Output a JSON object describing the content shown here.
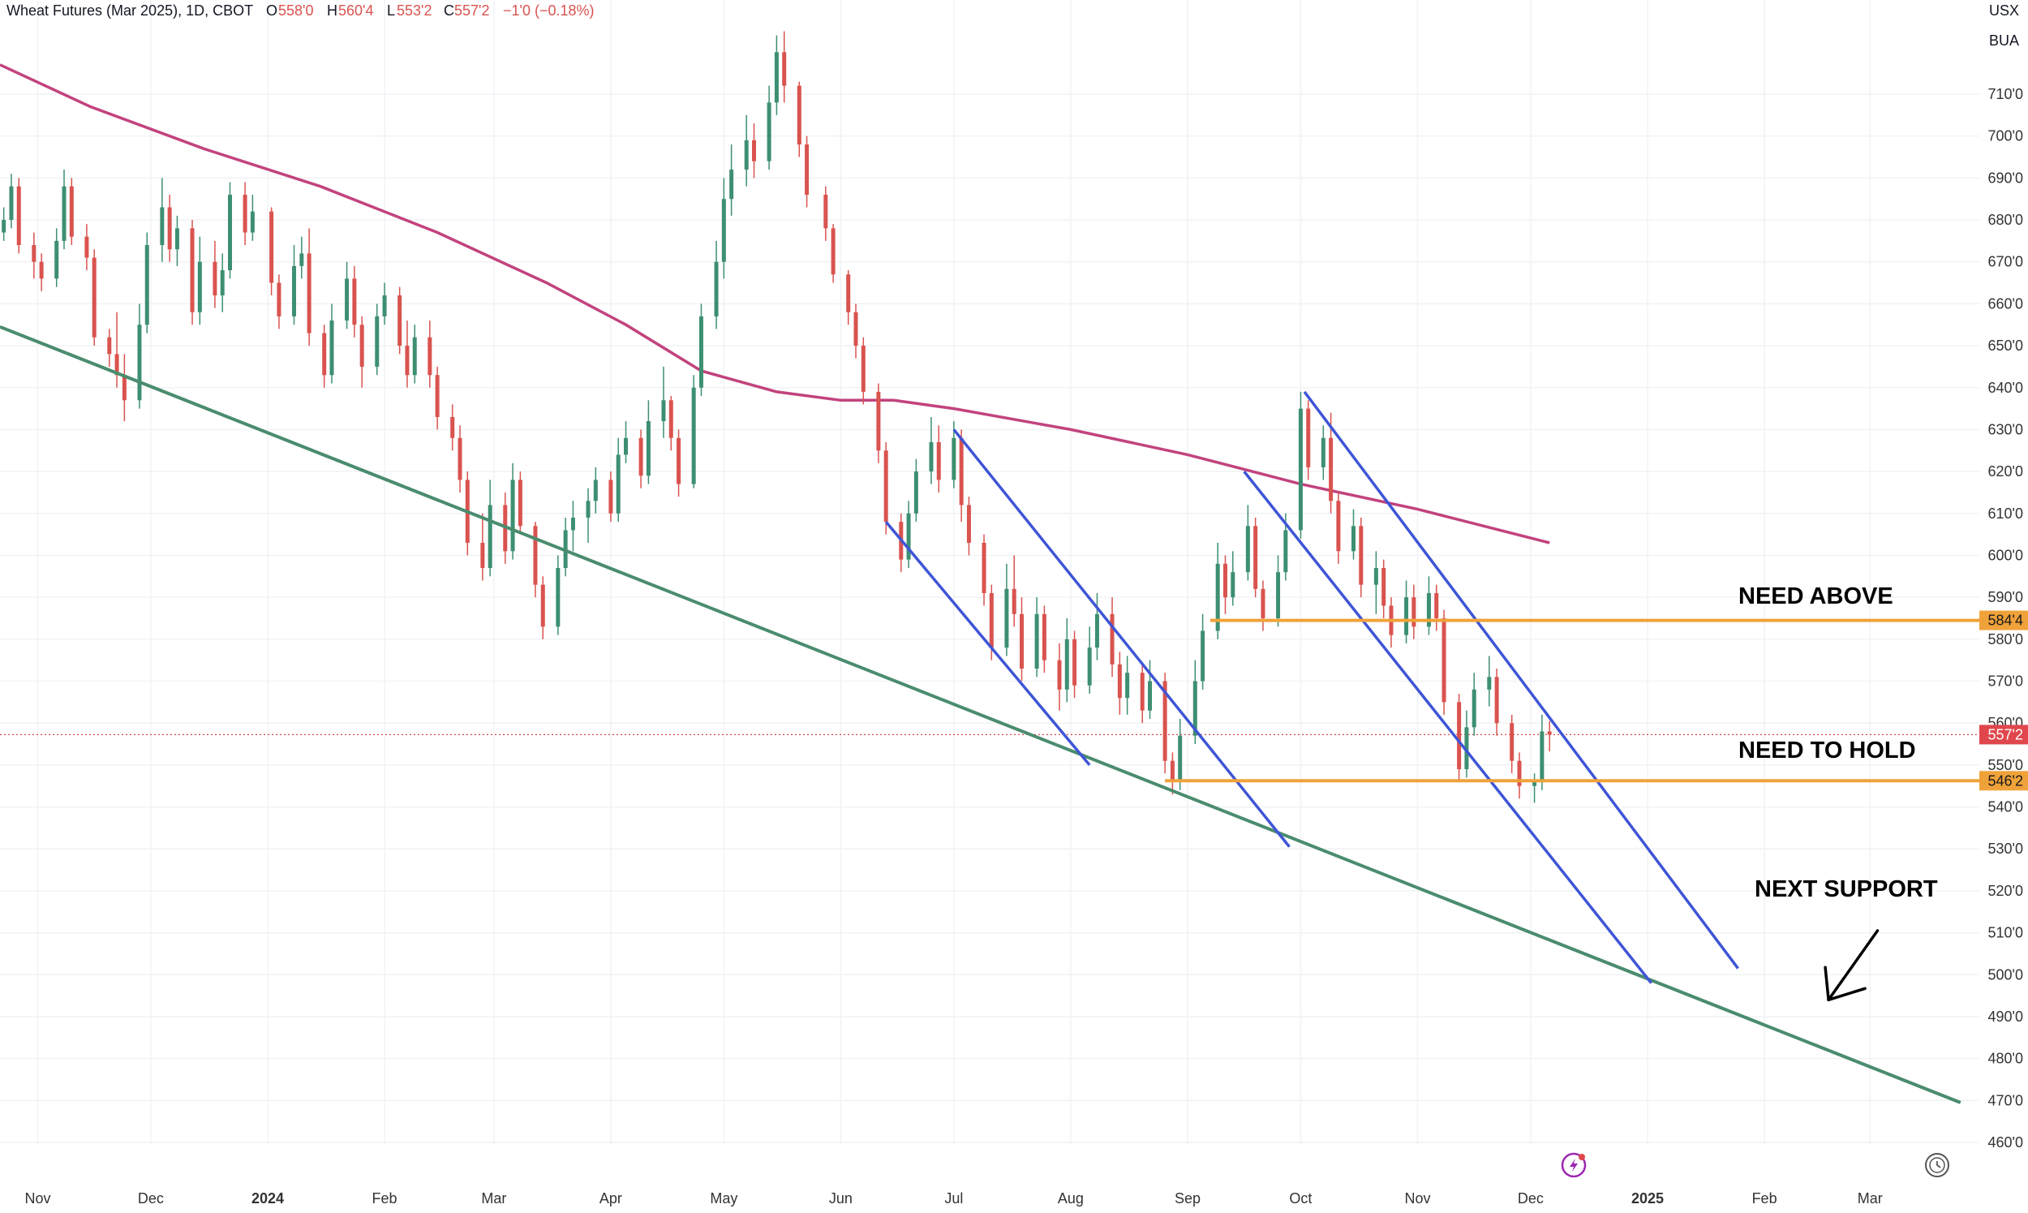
{
  "header": {
    "symbol": "Wheat Futures (Mar 2025), 1D, CBOT",
    "o_label": "O",
    "o_value": "558'0",
    "h_label": "H",
    "h_value": "560'4",
    "l_label": "L",
    "l_value": "553'2",
    "c_label": "C",
    "c_value": "557'2",
    "change": "−1'0 (−0.18%)"
  },
  "corner": {
    "currency": "USX",
    "unit": "BUA"
  },
  "price_tags": {
    "level_upper": "584'4",
    "level_lower": "546'2",
    "last": "557'2"
  },
  "annotations": {
    "need_above": "NEED ABOVE",
    "need_to_hold": "NEED TO HOLD",
    "next_support": "NEXT SUPPORT"
  },
  "colors": {
    "up": "#3d8f71",
    "down": "#d9534f",
    "ma": "#c2437e",
    "trend": "#4a8c6e",
    "channel": "#3e55d6",
    "level": "#f0a23a",
    "last_tag": "#e0474c",
    "grid": "#f0f2f5",
    "axis_text": "#333333"
  },
  "icons": {
    "bottom_left": "lightning-icon",
    "bottom_right": "clock-icon"
  },
  "chart_data": {
    "type": "candlestick",
    "title": "Wheat Futures (Mar 2025), 1D, CBOT",
    "y_ticks": [
      "460'0",
      "470'0",
      "480'0",
      "490'0",
      "500'0",
      "510'0",
      "520'0",
      "530'0",
      "540'0",
      "550'0",
      "560'0",
      "570'0",
      "580'0",
      "590'0",
      "600'0",
      "610'0",
      "620'0",
      "630'0",
      "640'0",
      "650'0",
      "660'0",
      "670'0",
      "680'0",
      "690'0",
      "700'0",
      "710'0"
    ],
    "x_ticks": [
      "Nov",
      "Dec",
      "2024",
      "Feb",
      "Mar",
      "Apr",
      "May",
      "Jun",
      "Jul",
      "Aug",
      "Sep",
      "Oct",
      "Nov",
      "Dec",
      "2025",
      "Feb",
      "Mar"
    ],
    "ylim": [
      460,
      717
    ],
    "xlim": [
      "2023-10-22",
      "2025-03-30"
    ],
    "grid": true,
    "levels": [
      {
        "label": "NEED ABOVE",
        "price": 584.5,
        "from": "2024-09-07"
      },
      {
        "label": "NEED TO HOLD",
        "price": 546.25,
        "from": "2024-08-26"
      }
    ],
    "last_price": 557.25,
    "moving_average": [
      [
        "2023-10-22",
        717
      ],
      [
        "2023-11-15",
        707
      ],
      [
        "2023-12-15",
        697
      ],
      [
        "2024-01-15",
        688
      ],
      [
        "2024-02-15",
        677
      ],
      [
        "2024-03-15",
        665
      ],
      [
        "2024-04-05",
        655
      ],
      [
        "2024-04-25",
        644
      ],
      [
        "2024-05-15",
        639
      ],
      [
        "2024-06-01",
        637
      ],
      [
        "2024-06-15",
        637
      ],
      [
        "2024-07-01",
        635
      ],
      [
        "2024-08-01",
        630
      ],
      [
        "2024-09-01",
        624
      ],
      [
        "2024-10-01",
        617
      ],
      [
        "2024-11-01",
        611
      ],
      [
        "2024-12-06",
        603
      ]
    ],
    "trendline": [
      [
        "2023-10-22",
        654.5
      ],
      [
        "2025-03-25",
        469.5
      ]
    ],
    "channels": [
      {
        "from": [
          "2024-07-01",
          630
        ],
        "to": [
          "2024-09-28",
          530.5
        ]
      },
      {
        "from": [
          "2024-06-13",
          608
        ],
        "to": [
          "2024-08-06",
          550
        ]
      },
      {
        "from": [
          "2024-10-02",
          639
        ],
        "to": [
          "2025-01-25",
          501.5
        ]
      },
      {
        "from": [
          "2024-09-16",
          620
        ],
        "to": [
          "2025-01-02",
          498
        ]
      }
    ],
    "arrow": {
      "from": [
        "2025-03-03",
        510.5
      ],
      "to": [
        "2025-02-18",
        494
      ]
    },
    "candles": [
      [
        "2023-10-23",
        677,
        683,
        675,
        680
      ],
      [
        "2023-10-25",
        680,
        691,
        678,
        688
      ],
      [
        "2023-10-27",
        688,
        690,
        672,
        674
      ],
      [
        "2023-10-31",
        674,
        677,
        666,
        670
      ],
      [
        "2023-11-02",
        670,
        672,
        663,
        666
      ],
      [
        "2023-11-06",
        666,
        678,
        664,
        675
      ],
      [
        "2023-11-08",
        675,
        692,
        673,
        688
      ],
      [
        "2023-11-10",
        688,
        690,
        674,
        676
      ],
      [
        "2023-11-14",
        676,
        679,
        668,
        671
      ],
      [
        "2023-11-16",
        671,
        673,
        650,
        652
      ],
      [
        "2023-11-20",
        652,
        654,
        645,
        648
      ],
      [
        "2023-11-22",
        648,
        658,
        640,
        643
      ],
      [
        "2023-11-24",
        643,
        648,
        632,
        637
      ],
      [
        "2023-11-28",
        637,
        660,
        635,
        655
      ],
      [
        "2023-11-30",
        655,
        677,
        653,
        674
      ],
      [
        "2023-12-04",
        674,
        690,
        670,
        683
      ],
      [
        "2023-12-06",
        683,
        686,
        670,
        673
      ],
      [
        "2023-12-08",
        673,
        681,
        669,
        678
      ],
      [
        "2023-12-12",
        678,
        680,
        655,
        658
      ],
      [
        "2023-12-14",
        658,
        676,
        655,
        670
      ],
      [
        "2023-12-18",
        670,
        675,
        659,
        662
      ],
      [
        "2023-12-20",
        662,
        672,
        658,
        668
      ],
      [
        "2023-12-22",
        668,
        689,
        666,
        686
      ],
      [
        "2023-12-26",
        686,
        689,
        674,
        677
      ],
      [
        "2023-12-28",
        677,
        686,
        675,
        682
      ],
      [
        "2024-01-02",
        682,
        683,
        662,
        665
      ],
      [
        "2024-01-04",
        665,
        667,
        654,
        657
      ],
      [
        "2024-01-08",
        657,
        674,
        655,
        669
      ],
      [
        "2024-01-10",
        669,
        676,
        666,
        672
      ],
      [
        "2024-01-12",
        672,
        678,
        650,
        653
      ],
      [
        "2024-01-16",
        653,
        655,
        640,
        643
      ],
      [
        "2024-01-18",
        643,
        660,
        641,
        656
      ],
      [
        "2024-01-22",
        656,
        670,
        654,
        666
      ],
      [
        "2024-01-24",
        666,
        669,
        652,
        655
      ],
      [
        "2024-01-26",
        655,
        657,
        640,
        645
      ],
      [
        "2024-01-30",
        645,
        660,
        643,
        657
      ],
      [
        "2024-02-01",
        657,
        665,
        655,
        662
      ],
      [
        "2024-02-05",
        662,
        664,
        648,
        650
      ],
      [
        "2024-02-07",
        650,
        656,
        640,
        643
      ],
      [
        "2024-02-09",
        643,
        655,
        641,
        652
      ],
      [
        "2024-02-13",
        652,
        656,
        640,
        643
      ],
      [
        "2024-02-15",
        643,
        645,
        630,
        633
      ],
      [
        "2024-02-19",
        633,
        636,
        625,
        628
      ],
      [
        "2024-02-21",
        628,
        631,
        615,
        618
      ],
      [
        "2024-02-23",
        618,
        620,
        600,
        603
      ],
      [
        "2024-02-27",
        603,
        610,
        594,
        597
      ],
      [
        "2024-02-29",
        597,
        618,
        595,
        612
      ],
      [
        "2024-03-04",
        612,
        615,
        598,
        601
      ],
      [
        "2024-03-06",
        601,
        622,
        599,
        618
      ],
      [
        "2024-03-08",
        618,
        620,
        605,
        607
      ],
      [
        "2024-03-12",
        607,
        608,
        590,
        593
      ],
      [
        "2024-03-14",
        593,
        595,
        580,
        583
      ],
      [
        "2024-03-18",
        583,
        600,
        581,
        597
      ],
      [
        "2024-03-20",
        597,
        609,
        595,
        606
      ],
      [
        "2024-03-22",
        606,
        613,
        601,
        609
      ],
      [
        "2024-03-26",
        609,
        616,
        603,
        613
      ],
      [
        "2024-03-28",
        613,
        621,
        610,
        618
      ],
      [
        "2024-04-01",
        618,
        620,
        608,
        610
      ],
      [
        "2024-04-03",
        610,
        628,
        608,
        624
      ],
      [
        "2024-04-05",
        624,
        632,
        622,
        628
      ],
      [
        "2024-04-09",
        628,
        630,
        616,
        619
      ],
      [
        "2024-04-11",
        619,
        637,
        617,
        632
      ],
      [
        "2024-04-15",
        632,
        645,
        628,
        637
      ],
      [
        "2024-04-17",
        637,
        638,
        625,
        628
      ],
      [
        "2024-04-19",
        628,
        630,
        614,
        617
      ],
      [
        "2024-04-23",
        617,
        643,
        616,
        640
      ],
      [
        "2024-04-25",
        640,
        660,
        638,
        657
      ],
      [
        "2024-04-29",
        657,
        675,
        654,
        670
      ],
      [
        "2024-05-01",
        670,
        690,
        666,
        685
      ],
      [
        "2024-05-03",
        685,
        698,
        681,
        692
      ],
      [
        "2024-05-07",
        692,
        705,
        688,
        699
      ],
      [
        "2024-05-09",
        699,
        703,
        690,
        694
      ],
      [
        "2024-05-13",
        694,
        712,
        692,
        708
      ],
      [
        "2024-05-15",
        708,
        724,
        705,
        720
      ],
      [
        "2024-05-17",
        720,
        725,
        708,
        712
      ],
      [
        "2024-05-21",
        712,
        713,
        695,
        698
      ],
      [
        "2024-05-23",
        698,
        700,
        683,
        686
      ],
      [
        "2024-05-28",
        686,
        688,
        675,
        678
      ],
      [
        "2024-05-30",
        678,
        679,
        665,
        667
      ],
      [
        "2024-06-03",
        667,
        668,
        655,
        658
      ],
      [
        "2024-06-05",
        658,
        660,
        647,
        650
      ],
      [
        "2024-06-07",
        650,
        652,
        636,
        639
      ],
      [
        "2024-06-11",
        639,
        641,
        622,
        625
      ],
      [
        "2024-06-13",
        625,
        627,
        605,
        608
      ],
      [
        "2024-06-17",
        608,
        610,
        596,
        599
      ],
      [
        "2024-06-19",
        599,
        613,
        597,
        610
      ],
      [
        "2024-06-21",
        610,
        623,
        608,
        620
      ],
      [
        "2024-06-25",
        620,
        633,
        617,
        627
      ],
      [
        "2024-06-27",
        627,
        631,
        615,
        618
      ],
      [
        "2024-07-01",
        618,
        632,
        616,
        628
      ],
      [
        "2024-07-03",
        628,
        630,
        608,
        612
      ],
      [
        "2024-07-05",
        612,
        614,
        600,
        603
      ],
      [
        "2024-07-09",
        603,
        605,
        588,
        591
      ],
      [
        "2024-07-11",
        591,
        593,
        575,
        578
      ],
      [
        "2024-07-15",
        578,
        598,
        576,
        592
      ],
      [
        "2024-07-17",
        592,
        600,
        583,
        586
      ],
      [
        "2024-07-19",
        586,
        590,
        570,
        573
      ],
      [
        "2024-07-23",
        573,
        590,
        571,
        586
      ],
      [
        "2024-07-25",
        586,
        588,
        572,
        575
      ],
      [
        "2024-07-29",
        575,
        579,
        563,
        568
      ],
      [
        "2024-07-31",
        568,
        585,
        565,
        580
      ],
      [
        "2024-08-02",
        580,
        582,
        566,
        569
      ],
      [
        "2024-08-06",
        569,
        583,
        567,
        578
      ],
      [
        "2024-08-08",
        578,
        591,
        575,
        586
      ],
      [
        "2024-08-12",
        586,
        590,
        571,
        574
      ],
      [
        "2024-08-14",
        574,
        577,
        562,
        566
      ],
      [
        "2024-08-16",
        566,
        576,
        562,
        572
      ],
      [
        "2024-08-20",
        572,
        574,
        560,
        563
      ],
      [
        "2024-08-22",
        563,
        575,
        561,
        570
      ],
      [
        "2024-08-26",
        570,
        572,
        548,
        551
      ],
      [
        "2024-08-28",
        551,
        553,
        543,
        546
      ],
      [
        "2024-08-30",
        546,
        561,
        544,
        557
      ],
      [
        "2024-09-03",
        557,
        575,
        555,
        570
      ],
      [
        "2024-09-05",
        570,
        586,
        568,
        582
      ],
      [
        "2024-09-09",
        582,
        603,
        580,
        598
      ],
      [
        "2024-09-11",
        598,
        600,
        586,
        590
      ],
      [
        "2024-09-13",
        590,
        601,
        588,
        596
      ],
      [
        "2024-09-17",
        596,
        612,
        594,
        607
      ],
      [
        "2024-09-19",
        607,
        609,
        590,
        592
      ],
      [
        "2024-09-21",
        592,
        594,
        582,
        585
      ],
      [
        "2024-09-25",
        585,
        600,
        583,
        596
      ],
      [
        "2024-09-27",
        596,
        610,
        594,
        606
      ],
      [
        "2024-10-01",
        606,
        639,
        604,
        635
      ],
      [
        "2024-10-03",
        635,
        637,
        618,
        621
      ],
      [
        "2024-10-07",
        621,
        631,
        618,
        628
      ],
      [
        "2024-10-09",
        628,
        634,
        610,
        613
      ],
      [
        "2024-10-11",
        613,
        615,
        598,
        601
      ],
      [
        "2024-10-15",
        601,
        611,
        599,
        607
      ],
      [
        "2024-10-17",
        607,
        609,
        590,
        593
      ],
      [
        "2024-10-21",
        593,
        601,
        586,
        597
      ],
      [
        "2024-10-23",
        597,
        599,
        585,
        588
      ],
      [
        "2024-10-25",
        588,
        590,
        578,
        581
      ],
      [
        "2024-10-29",
        581,
        594,
        579,
        590
      ],
      [
        "2024-10-31",
        590,
        593,
        580,
        583
      ],
      [
        "2024-11-04",
        583,
        595,
        581,
        591
      ],
      [
        "2024-11-06",
        591,
        593,
        582,
        585
      ],
      [
        "2024-11-08",
        585,
        587,
        562,
        565
      ],
      [
        "2024-11-12",
        565,
        567,
        546,
        549
      ],
      [
        "2024-11-14",
        549,
        563,
        547,
        559
      ],
      [
        "2024-11-16",
        559,
        572,
        557,
        568
      ],
      [
        "2024-11-20",
        568,
        576,
        564,
        571
      ],
      [
        "2024-11-22",
        571,
        573,
        557,
        560
      ],
      [
        "2024-11-26",
        560,
        562,
        548,
        551
      ],
      [
        "2024-11-28",
        551,
        553,
        542,
        545
      ],
      [
        "2024-12-02",
        545,
        548,
        541,
        546
      ],
      [
        "2024-12-04",
        546,
        562,
        544,
        558
      ],
      [
        "2024-12-06",
        558,
        560.5,
        553.25,
        557.25
      ]
    ]
  }
}
